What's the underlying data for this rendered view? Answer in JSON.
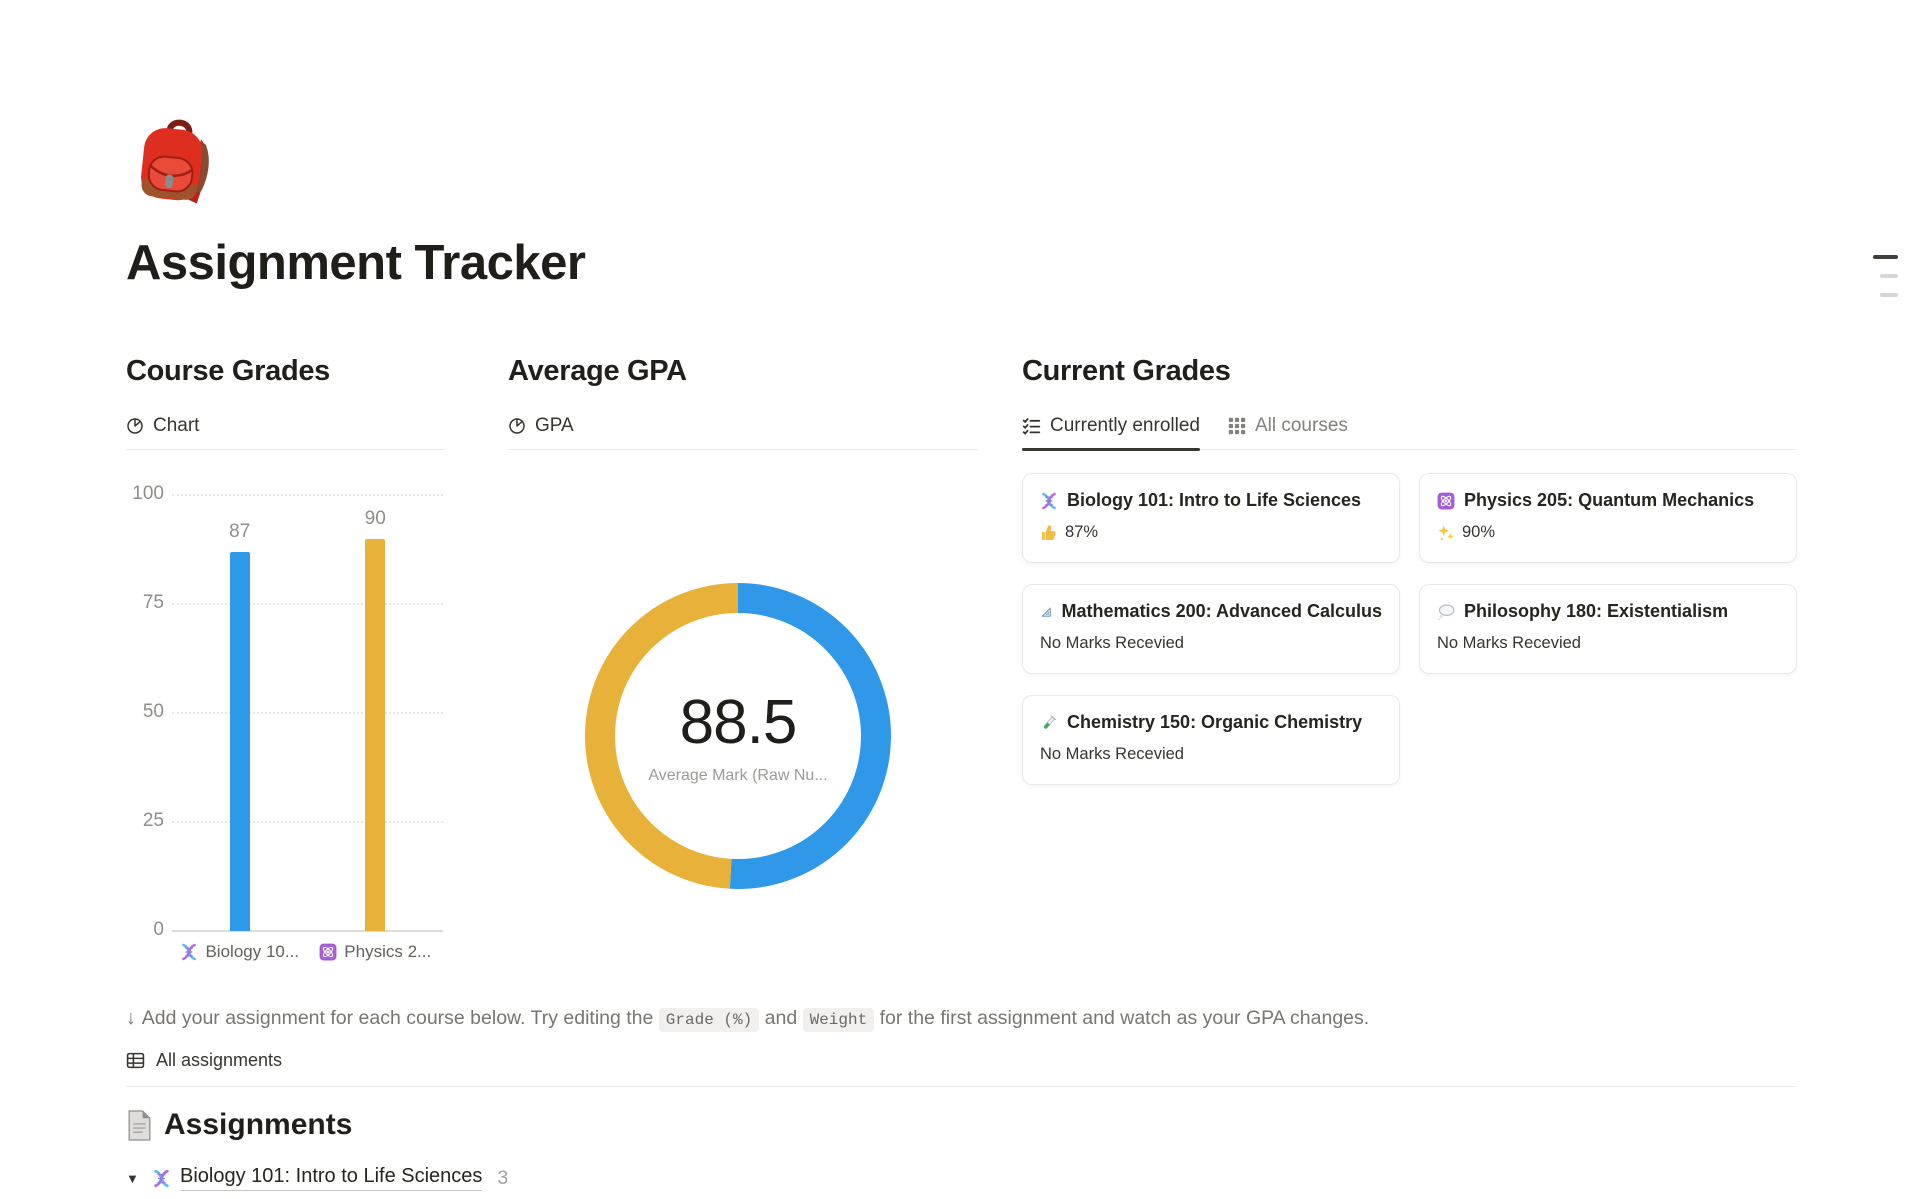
{
  "page": {
    "icon": "backpack-emoji",
    "title": "Assignment Tracker"
  },
  "course_grades": {
    "heading": "Course Grades",
    "tab": {
      "icon": "pie-chart-icon",
      "label": "Chart"
    }
  },
  "average_gpa": {
    "heading": "Average GPA",
    "tab": {
      "icon": "pie-chart-icon",
      "label": "GPA"
    }
  },
  "current_grades": {
    "heading": "Current Grades",
    "tabs": [
      {
        "icon": "checklist-icon",
        "label": "Currently enrolled",
        "active": true
      },
      {
        "icon": "grid-icon",
        "label": "All courses",
        "active": false
      }
    ],
    "cards": [
      {
        "icon": "dna-icon",
        "title": "Biology 101: Intro to Life Sciences",
        "mark_icon": "thumbs-up-icon",
        "mark": "87%"
      },
      {
        "icon": "atom-icon",
        "title": "Physics 205: Quantum Mechanics",
        "mark_icon": "sparkles-icon",
        "mark": "90%"
      },
      {
        "icon": "triangular-ruler-icon",
        "title": "Mathematics 200: Advanced Calculus",
        "mark_icon": null,
        "mark": "No Marks Recevied"
      },
      {
        "icon": "thought-balloon-icon",
        "title": "Philosophy 180: Existentialism",
        "mark_icon": null,
        "mark": "No Marks Recevied"
      },
      {
        "icon": "test-tube-icon",
        "title": "Chemistry 150: Organic Chemistry",
        "mark_icon": null,
        "mark": "No Marks Recevied"
      }
    ]
  },
  "chart_data": [
    {
      "type": "bar",
      "title": "Course Grades",
      "categories": [
        "🧬 Biology 10...",
        "⚛️ Physics 2..."
      ],
      "category_labels": [
        "Biology 10...",
        "Physics 2..."
      ],
      "category_icons": [
        "dna-icon",
        "atom-icon"
      ],
      "values": [
        87,
        90
      ],
      "value_labels": [
        "87",
        "90"
      ],
      "bar_colors": [
        "#2F98E8",
        "#E8B13A"
      ],
      "xlabel": "",
      "ylabel": "",
      "ylim": [
        0,
        100
      ],
      "yticks": [
        0,
        25,
        50,
        75,
        100
      ],
      "grid": "dotted-horizontal",
      "legend": "none"
    },
    {
      "type": "donut",
      "title": "Average GPA",
      "center_value": "88.5",
      "center_label": "Average Mark (Raw Nu...",
      "start_angle_deg": 0,
      "direction": "clockwise",
      "slices": [
        {
          "name": "Physics 205: Quantum Mechanics",
          "value": 90,
          "color": "#2F98E8"
        },
        {
          "name": "Biology 101: Intro to Life Sciences",
          "value": 87,
          "color": "#E8B13A"
        }
      ]
    }
  ],
  "note": {
    "arrow": "↓",
    "prefix": "Add your assignment for each course below. Try editing the ",
    "code1": "Grade (%)",
    "middle": " and ",
    "code2": "Weight",
    "suffix": " for the first assignment and watch as your GPA changes."
  },
  "assignments": {
    "tab": {
      "icon": "table-icon",
      "label": "All assignments"
    },
    "heading": {
      "icon": "page-icon",
      "label": "Assignments"
    },
    "groups": [
      {
        "toggle": "▼",
        "icon": "dna-icon",
        "title": "Biology 101: Intro to Life Sciences",
        "count": "3"
      }
    ]
  },
  "colors": {
    "chart_blue": "#2F98E8",
    "chart_yellow": "#E8B13A",
    "active_text": "#37352f",
    "muted_text": "#82817d"
  }
}
